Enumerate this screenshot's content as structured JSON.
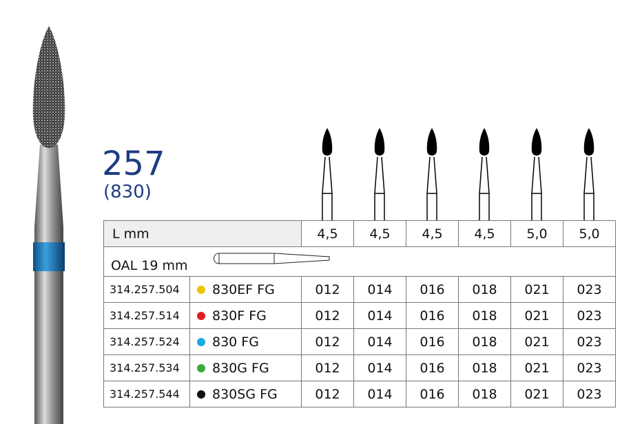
{
  "title": "257",
  "subtitle": "(830)",
  "header": {
    "label": "L  mm",
    "values": [
      "4,5",
      "4,5",
      "4,5",
      "4,5",
      "5,0",
      "5,0"
    ]
  },
  "oal": {
    "label": "OAL  19 mm"
  },
  "rows": [
    {
      "code": "314.257.504",
      "name": "830EF FG",
      "color": "#e8c400",
      "sizes": [
        "012",
        "014",
        "016",
        "018",
        "021",
        "023"
      ]
    },
    {
      "code": "314.257.514",
      "name": "830F FG",
      "color": "#e02020",
      "sizes": [
        "012",
        "014",
        "016",
        "018",
        "021",
        "023"
      ]
    },
    {
      "code": "314.257.524",
      "name": "830 FG",
      "color": "#1ea8e6",
      "sizes": [
        "012",
        "014",
        "016",
        "018",
        "021",
        "023"
      ]
    },
    {
      "code": "314.257.534",
      "name": "830G FG",
      "color": "#3aaa3a",
      "sizes": [
        "012",
        "014",
        "016",
        "018",
        "021",
        "023"
      ]
    },
    {
      "code": "314.257.544",
      "name": "830SG FG",
      "color": "#111111",
      "sizes": [
        "012",
        "014",
        "016",
        "018",
        "021",
        "023"
      ]
    }
  ],
  "colors": {
    "title": "#1e3c82",
    "band": "#1a7fc0"
  }
}
